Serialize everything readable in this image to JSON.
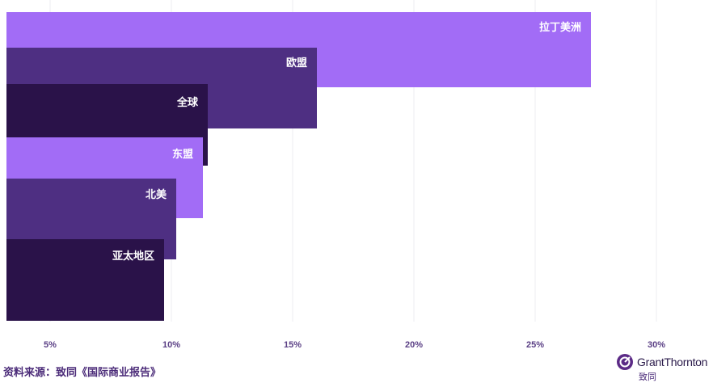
{
  "chart_data": {
    "type": "bar",
    "orientation": "horizontal",
    "categories": [
      "拉丁美洲",
      "欧盟",
      "全球",
      "东盟",
      "北美",
      "亚太地区"
    ],
    "values": [
      27.3,
      16.0,
      11.5,
      11.3,
      10.2,
      9.7
    ],
    "colors": [
      "#a26cf6",
      "#4e2f82",
      "#2a1249",
      "#a26cf6",
      "#4e2f82",
      "#2a1249"
    ],
    "xticks": [
      "5%",
      "10%",
      "15%",
      "20%",
      "25%",
      "30%"
    ],
    "xtick_values": [
      5,
      10,
      15,
      20,
      25,
      30
    ],
    "xlim": [
      3.2,
      32
    ],
    "grid": true,
    "title": "",
    "xlabel": "",
    "ylabel": ""
  },
  "footer": {
    "source": "资料来源：致同《国际商业报告》",
    "logo_name": "GrantThornton",
    "logo_sub": "致同"
  }
}
